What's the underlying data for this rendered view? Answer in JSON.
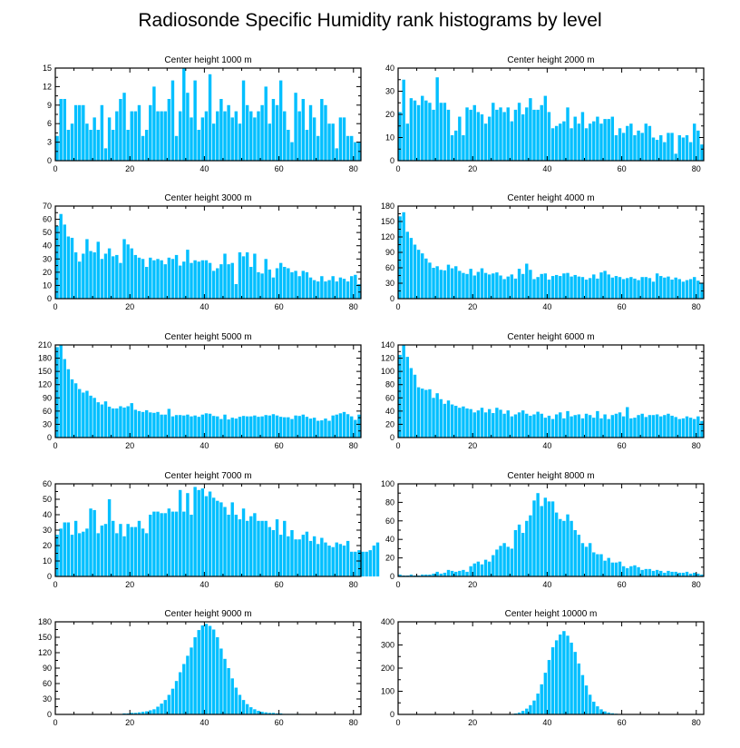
{
  "figure": {
    "title": "Radiosonde Specific Humidity rank histograms by level"
  },
  "style": {
    "bar_color": "#00BFFF",
    "axis_color": "#000000"
  },
  "chart_data": [
    {
      "type": "bar",
      "title": "Center height 1000 m",
      "xlabel": "",
      "ylabel": "",
      "xlim": [
        0,
        82
      ],
      "ylim": [
        0,
        15
      ],
      "xticks": [
        0,
        20,
        40,
        60,
        80
      ],
      "yticks": [
        0,
        3,
        6,
        9,
        12,
        15
      ],
      "values": [
        4,
        10,
        10,
        5,
        6,
        9,
        9,
        9,
        6,
        5,
        7,
        5,
        9,
        2,
        7,
        5,
        8,
        10,
        11,
        5,
        8,
        8,
        9,
        4,
        5,
        9,
        12,
        8,
        8,
        8,
        10,
        13,
        4,
        8,
        15,
        11,
        7,
        13,
        5,
        7,
        8,
        14,
        6,
        8,
        10,
        8,
        9,
        7,
        8,
        6,
        13,
        9,
        8,
        7,
        8,
        9,
        12,
        6,
        10,
        9,
        13,
        8,
        5,
        3,
        11,
        8,
        10,
        5,
        9,
        7,
        4,
        10,
        9,
        6,
        6,
        2,
        7,
        7,
        4,
        4,
        3,
        3
      ]
    },
    {
      "type": "bar",
      "title": "Center height 2000 m",
      "xlabel": "",
      "ylabel": "",
      "xlim": [
        0,
        82
      ],
      "ylim": [
        0,
        40
      ],
      "xticks": [
        0,
        20,
        40,
        60,
        80
      ],
      "yticks": [
        0,
        10,
        20,
        30,
        40
      ],
      "values": [
        21,
        35,
        16,
        27,
        26,
        24,
        28,
        26,
        25,
        22,
        36,
        25,
        25,
        22,
        11,
        13,
        19,
        11,
        23,
        22,
        24,
        21,
        20,
        16,
        19,
        25,
        22,
        23,
        21,
        23,
        17,
        22,
        25,
        20,
        23,
        27,
        22,
        22,
        24,
        28,
        21,
        14,
        15,
        16,
        17,
        23,
        14,
        19,
        16,
        21,
        14,
        16,
        17,
        19,
        16,
        18,
        18,
        19,
        11,
        14,
        12,
        15,
        16,
        11,
        13,
        12,
        16,
        15,
        10,
        9,
        11,
        8,
        12,
        12,
        3,
        11,
        10,
        11,
        8,
        16,
        13,
        7
      ]
    },
    {
      "type": "bar",
      "title": "Center height 3000 m",
      "xlabel": "",
      "ylabel": "",
      "xlim": [
        0,
        82
      ],
      "ylim": [
        0,
        70
      ],
      "xticks": [
        0,
        20,
        40,
        60,
        80
      ],
      "yticks": [
        0,
        10,
        20,
        30,
        40,
        50,
        60,
        70
      ],
      "values": [
        55,
        64,
        56,
        47,
        46,
        35,
        28,
        34,
        45,
        36,
        35,
        43,
        30,
        34,
        38,
        32,
        33,
        27,
        45,
        41,
        38,
        33,
        31,
        30,
        24,
        31,
        29,
        30,
        29,
        26,
        31,
        30,
        33,
        25,
        28,
        37,
        27,
        29,
        28,
        29,
        29,
        27,
        21,
        23,
        26,
        34,
        26,
        27,
        11,
        35,
        32,
        35,
        24,
        34,
        20,
        19,
        30,
        22,
        16,
        23,
        27,
        24,
        23,
        20,
        21,
        17,
        21,
        20,
        16,
        14,
        13,
        17,
        13,
        14,
        17,
        13,
        16,
        15,
        13,
        17,
        18,
        11
      ]
    },
    {
      "type": "bar",
      "title": "Center height 4000 m",
      "xlabel": "",
      "ylabel": "",
      "xlim": [
        0,
        82
      ],
      "ylim": [
        0,
        180
      ],
      "xticks": [
        0,
        20,
        40,
        60,
        80
      ],
      "yticks": [
        0,
        30,
        60,
        90,
        120,
        150,
        180
      ],
      "values": [
        160,
        168,
        130,
        118,
        105,
        95,
        88,
        78,
        70,
        60,
        63,
        56,
        55,
        66,
        59,
        63,
        54,
        50,
        48,
        58,
        45,
        52,
        59,
        50,
        47,
        49,
        51,
        45,
        38,
        43,
        47,
        39,
        58,
        48,
        68,
        56,
        38,
        42,
        48,
        49,
        37,
        44,
        46,
        44,
        49,
        50,
        43,
        46,
        43,
        42,
        37,
        40,
        47,
        39,
        51,
        54,
        47,
        41,
        44,
        42,
        38,
        40,
        42,
        39,
        36,
        42,
        42,
        40,
        33,
        49,
        44,
        41,
        43,
        37,
        41,
        38,
        33,
        36,
        38,
        42,
        35,
        31
      ]
    },
    {
      "type": "bar",
      "title": "Center height 5000 m",
      "xlabel": "",
      "ylabel": "",
      "xlim": [
        0,
        82
      ],
      "ylim": [
        0,
        210
      ],
      "xticks": [
        0,
        20,
        40,
        60,
        80
      ],
      "yticks": [
        0,
        30,
        60,
        90,
        120,
        150,
        180,
        210
      ],
      "values": [
        205,
        210,
        178,
        155,
        132,
        123,
        110,
        102,
        106,
        95,
        90,
        80,
        75,
        82,
        70,
        66,
        66,
        71,
        68,
        71,
        78,
        63,
        60,
        58,
        62,
        57,
        56,
        58,
        52,
        52,
        65,
        48,
        51,
        51,
        50,
        52,
        48,
        50,
        47,
        52,
        55,
        54,
        49,
        48,
        42,
        52,
        41,
        45,
        43,
        47,
        49,
        48,
        48,
        50,
        47,
        48,
        51,
        50,
        53,
        50,
        47,
        46,
        46,
        42,
        50,
        49,
        52,
        47,
        43,
        45,
        38,
        39,
        43,
        38,
        50,
        52,
        55,
        58,
        53,
        48,
        40,
        52
      ]
    },
    {
      "type": "bar",
      "title": "Center height 6000 m",
      "xlabel": "",
      "ylabel": "",
      "xlim": [
        0,
        82
      ],
      "ylim": [
        0,
        140
      ],
      "xticks": [
        0,
        20,
        40,
        60,
        80
      ],
      "yticks": [
        0,
        20,
        40,
        60,
        80,
        100,
        120,
        140
      ],
      "values": [
        125,
        140,
        122,
        105,
        95,
        76,
        74,
        72,
        73,
        60,
        67,
        58,
        51,
        56,
        50,
        48,
        45,
        47,
        44,
        43,
        38,
        41,
        45,
        38,
        43,
        37,
        45,
        42,
        36,
        41,
        32,
        35,
        38,
        41,
        36,
        33,
        35,
        39,
        36,
        30,
        33,
        28,
        35,
        38,
        29,
        40,
        32,
        34,
        35,
        29,
        36,
        34,
        30,
        40,
        29,
        35,
        28,
        34,
        36,
        38,
        32,
        46,
        29,
        30,
        34,
        36,
        31,
        34,
        34,
        35,
        32,
        34,
        36,
        33,
        31,
        28,
        29,
        32,
        30,
        28,
        32,
        25
      ]
    },
    {
      "type": "bar",
      "title": "Center height 7000 m",
      "xlabel": "",
      "ylabel": "",
      "xlim": [
        0,
        82
      ],
      "ylim": [
        0,
        60
      ],
      "xticks": [
        0,
        20,
        40,
        60,
        80
      ],
      "yticks": [
        0,
        10,
        20,
        30,
        40,
        50,
        60
      ],
      "values": [
        27,
        31,
        35,
        35,
        27,
        36,
        28,
        29,
        31,
        44,
        43,
        28,
        33,
        34,
        50,
        36,
        28,
        34,
        26,
        34,
        32,
        32,
        36,
        31,
        28,
        40,
        42,
        42,
        41,
        41,
        44,
        42,
        42,
        56,
        42,
        54,
        40,
        58,
        56,
        57,
        52,
        55,
        51,
        49,
        48,
        45,
        40,
        48,
        40,
        37,
        44,
        36,
        39,
        41,
        36,
        36,
        36,
        32,
        30,
        37,
        27,
        36,
        26,
        30,
        24,
        24,
        27,
        29,
        23,
        26,
        21,
        25,
        22,
        20,
        19,
        22,
        21,
        20,
        23,
        16,
        16,
        17,
        16,
        16,
        17,
        20,
        22
      ]
    },
    {
      "type": "bar",
      "title": "Center height 8000 m",
      "xlabel": "",
      "ylabel": "",
      "xlim": [
        0,
        82
      ],
      "ylim": [
        0,
        100
      ],
      "xticks": [
        0,
        20,
        40,
        60,
        80
      ],
      "yticks": [
        0,
        20,
        40,
        60,
        80,
        100
      ],
      "values": [
        2,
        1,
        1,
        2,
        1,
        1,
        2,
        2,
        2,
        3,
        5,
        3,
        4,
        7,
        6,
        5,
        6,
        7,
        5,
        11,
        14,
        16,
        13,
        18,
        16,
        23,
        29,
        33,
        36,
        32,
        30,
        50,
        56,
        47,
        60,
        66,
        82,
        90,
        76,
        85,
        81,
        81,
        69,
        62,
        60,
        67,
        60,
        50,
        45,
        36,
        32,
        36,
        26,
        24,
        24,
        17,
        20,
        15,
        15,
        16,
        11,
        9,
        11,
        12,
        10,
        7,
        8,
        8,
        6,
        7,
        6,
        4,
        6,
        5,
        5,
        4,
        4,
        5,
        3,
        4,
        3,
        2
      ]
    },
    {
      "type": "bar",
      "title": "Center height 9000 m",
      "xlabel": "",
      "ylabel": "",
      "xlim": [
        0,
        82
      ],
      "ylim": [
        0,
        180
      ],
      "xticks": [
        0,
        20,
        40,
        60,
        80
      ],
      "yticks": [
        0,
        30,
        60,
        90,
        120,
        150,
        180
      ],
      "values": [
        0,
        0,
        0,
        0,
        0,
        0,
        0,
        0,
        0,
        0,
        0,
        0,
        0,
        0,
        0,
        0,
        0,
        0,
        2,
        2,
        3,
        3,
        4,
        5,
        6,
        8,
        10,
        15,
        21,
        28,
        38,
        50,
        65,
        82,
        98,
        114,
        130,
        150,
        164,
        173,
        176,
        172,
        165,
        150,
        128,
        108,
        90,
        70,
        52,
        38,
        28,
        20,
        14,
        10,
        7,
        5,
        4,
        3,
        3,
        2,
        2,
        1,
        1,
        1,
        1,
        1,
        0,
        0,
        0,
        0,
        0,
        0,
        0,
        0,
        0,
        0,
        0,
        0,
        0,
        0,
        0,
        0
      ]
    },
    {
      "type": "bar",
      "title": "Center height 10000 m",
      "xlabel": "",
      "ylabel": "",
      "xlim": [
        0,
        82
      ],
      "ylim": [
        0,
        400
      ],
      "xticks": [
        0,
        20,
        40,
        60,
        80
      ],
      "yticks": [
        0,
        100,
        200,
        300,
        400
      ],
      "values": [
        0,
        0,
        0,
        0,
        0,
        0,
        0,
        0,
        0,
        0,
        0,
        0,
        0,
        0,
        0,
        0,
        0,
        0,
        0,
        0,
        0,
        0,
        0,
        0,
        0,
        0,
        0,
        0,
        0,
        1,
        2,
        4,
        8,
        15,
        25,
        40,
        60,
        90,
        130,
        180,
        235,
        290,
        320,
        345,
        360,
        340,
        310,
        270,
        220,
        170,
        125,
        85,
        55,
        35,
        22,
        13,
        8,
        5,
        3,
        2,
        1,
        1,
        0,
        0,
        0,
        0,
        0,
        0,
        0,
        0,
        0,
        0,
        0,
        0,
        0,
        0,
        0,
        0,
        0,
        0,
        0,
        0
      ]
    }
  ]
}
